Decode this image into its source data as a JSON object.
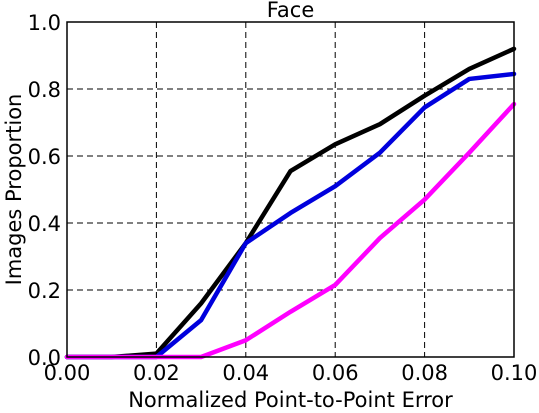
{
  "chart_data": {
    "type": "line",
    "title": "Face",
    "xlabel": "Normalized Point-to-Point Error",
    "ylabel": "Images Proportion",
    "xlim": [
      0,
      0.1
    ],
    "ylim": [
      0,
      1.0
    ],
    "grid": true,
    "xticks": [
      0,
      0.02,
      0.04,
      0.06,
      0.08,
      0.1
    ],
    "xtick_labels": [
      "0.00",
      "0.02",
      "0.04",
      "0.06",
      "0.08",
      "0.10"
    ],
    "yticks": [
      0,
      0.2,
      0.4,
      0.6,
      0.8,
      1.0
    ],
    "ytick_labels": [
      "0.0",
      "0.2",
      "0.4",
      "0.6",
      "0.8",
      "1.0"
    ],
    "x": [
      0,
      0.01,
      0.02,
      0.03,
      0.04,
      0.05,
      0.06,
      0.07,
      0.08,
      0.09,
      0.1
    ],
    "series": [
      {
        "color": "#000000",
        "values": [
          0.0,
          0.0,
          0.01,
          0.16,
          0.34,
          0.555,
          0.635,
          0.695,
          0.78,
          0.86,
          0.92
        ]
      },
      {
        "color": "#0000dd",
        "values": [
          0.0,
          0.0,
          0.0,
          0.11,
          0.34,
          0.43,
          0.51,
          0.61,
          0.745,
          0.83,
          0.845
        ]
      },
      {
        "color": "#ff00ff",
        "values": [
          0.0,
          0.0,
          0.0,
          0.0,
          0.05,
          0.135,
          0.215,
          0.355,
          0.47,
          0.61,
          0.755
        ]
      }
    ]
  }
}
